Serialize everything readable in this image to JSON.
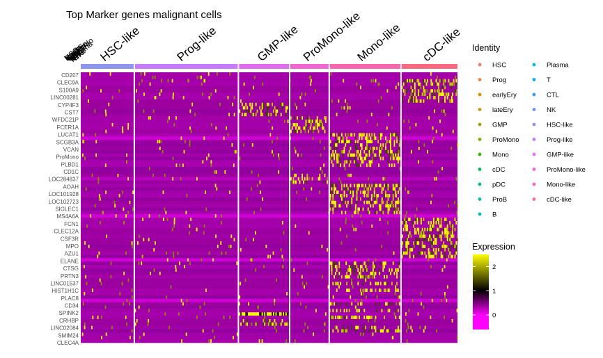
{
  "chart_data": {
    "type": "heatmap",
    "title": "Top Marker genes malignant cells",
    "clusters": [
      {
        "name": "HSC-like",
        "color": "#8C96EE",
        "cells": 36
      },
      {
        "name": "Prog-like",
        "color": "#C77CFF",
        "cells": 70
      },
      {
        "name": "GMP-like",
        "color": "#E06BF0",
        "cells": 34
      },
      {
        "name": "ProMono-like",
        "color": "#F066D2",
        "cells": 26
      },
      {
        "name": "Mono-like",
        "color": "#F766AE",
        "cells": 48
      },
      {
        "name": "cDC-like",
        "color": "#F8697F",
        "cells": 38
      }
    ],
    "empty_group_labels": [
      "HSC",
      "Prog",
      "earlyEry",
      "lateEry",
      "GMP",
      "ProMono",
      "Mono",
      "cDC",
      "pDC",
      "ProB",
      "B",
      "Plasma",
      "T",
      "CTL",
      "NK"
    ],
    "genes": [
      "CD207",
      "CLEC9A",
      "S100A9",
      "LINC00281",
      "CYP4F3",
      "CST7",
      "WFDC21P",
      "FCER1A",
      "LUCAT1",
      "SCGB3A",
      "VCAN",
      "ProMono",
      "PLBD1",
      "CD1C",
      "LOC284837",
      "AOAH",
      "LOC101928",
      "LOC102723",
      "SIGLEC1",
      "MS4A6A",
      "FCN1",
      "CLEC12A",
      "CSF3R",
      "MPO",
      "AZU1",
      "ELANE",
      "CTSG",
      "PRTN3",
      "LINC01537",
      "HIST1H1C",
      "PLAC8",
      "CD34",
      "SPINK2",
      "CRHBP",
      "LINC02084",
      "SMIM24",
      "CLEC4A"
    ],
    "legend_identity": {
      "title": "Identity",
      "col1": [
        {
          "label": "HSC",
          "color": "#F8766D"
        },
        {
          "label": "Prog",
          "color": "#EC823C"
        },
        {
          "label": "earlyEry",
          "color": "#DE8C00"
        },
        {
          "label": "lateEry",
          "color": "#C59900"
        },
        {
          "label": "GMP",
          "color": "#A3A500"
        },
        {
          "label": "ProMono",
          "color": "#7CAE00"
        },
        {
          "label": "Mono",
          "color": "#39B600"
        },
        {
          "label": "cDC",
          "color": "#00BB4E"
        },
        {
          "label": "pDC",
          "color": "#00BF7D"
        },
        {
          "label": "ProB",
          "color": "#00C1A3"
        },
        {
          "label": "B",
          "color": "#00BFC4"
        }
      ],
      "col2": [
        {
          "label": "Plasma",
          "color": "#00BAE0"
        },
        {
          "label": "T",
          "color": "#00B0F6"
        },
        {
          "label": "CTL",
          "color": "#35A2FF"
        },
        {
          "label": "NK",
          "color": "#6F91FF"
        },
        {
          "label": "HSC-like",
          "color": "#9590FF"
        },
        {
          "label": "Prog-like",
          "color": "#C77CFF"
        },
        {
          "label": "GMP-like",
          "color": "#E76BF3"
        },
        {
          "label": "ProMono-like",
          "color": "#FA62DB"
        },
        {
          "label": "Mono-like",
          "color": "#FF62BC"
        },
        {
          "label": "cDC-like",
          "color": "#FF6C91"
        }
      ]
    },
    "legend_expression": {
      "title": "Expression",
      "ticks": [
        "2",
        "1",
        "0"
      ],
      "tick_values": [
        2,
        1,
        0
      ],
      "range": [
        -0.6,
        2.5
      ],
      "colors": [
        "#FF00FF",
        "#000000",
        "#FFFF00"
      ]
    }
  }
}
